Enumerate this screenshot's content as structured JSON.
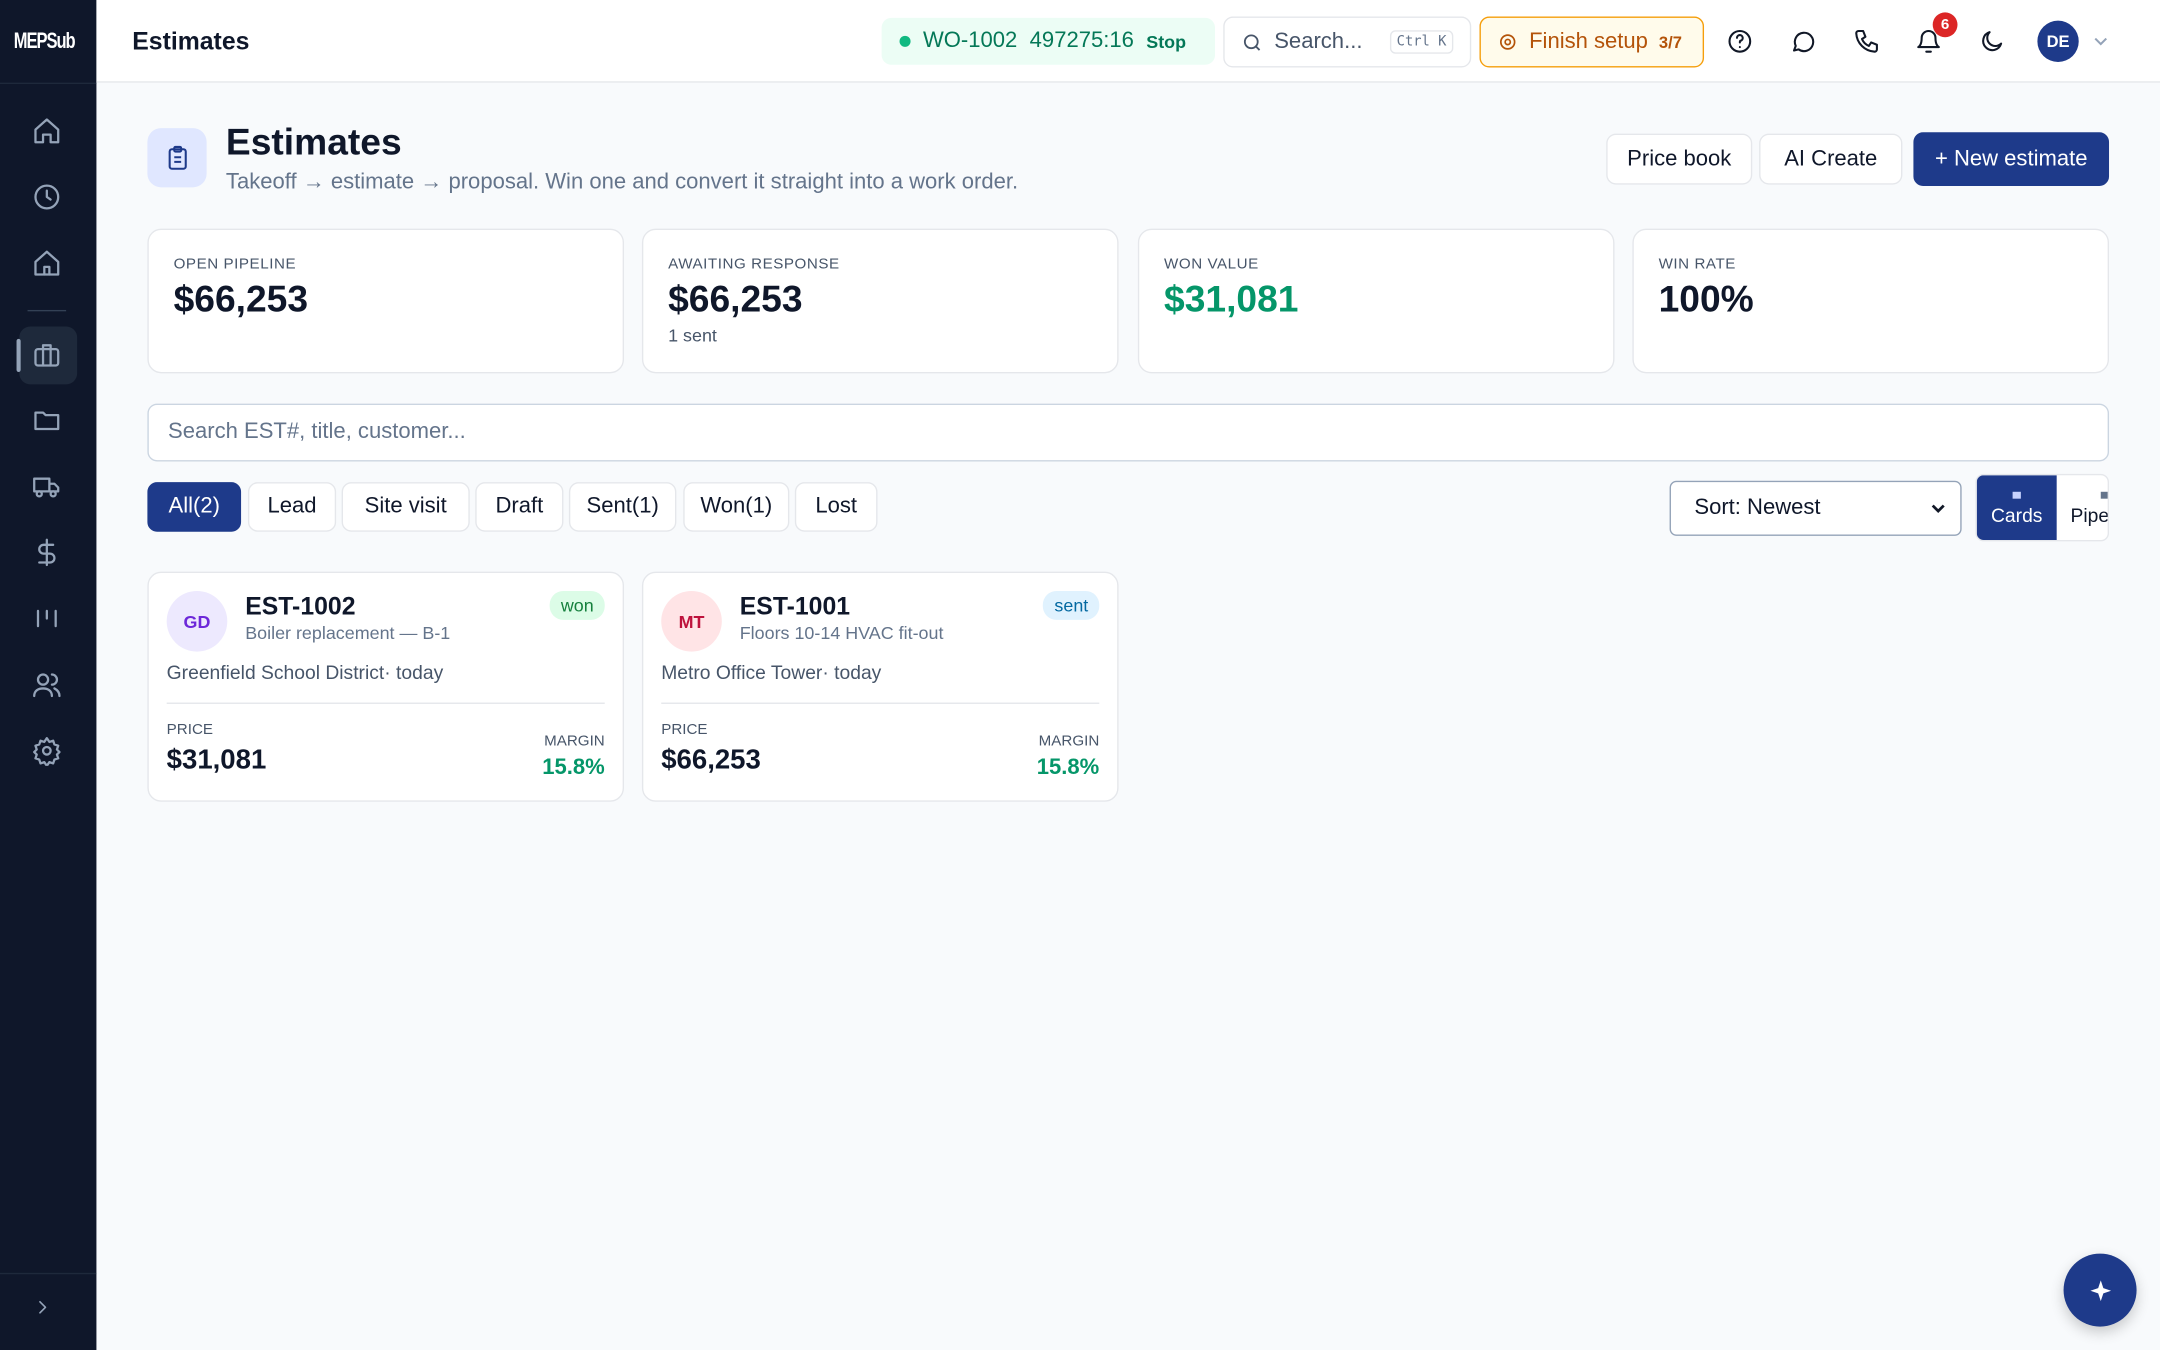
{
  "sidebar": {
    "logo": "MEPSub"
  },
  "topbar": {
    "page_title": "Estimates",
    "timer": {
      "work_order": "WO-1002",
      "elapsed": "497275:16",
      "action": "Stop"
    },
    "search": {
      "placeholder": "Search...",
      "shortcut": "Ctrl K"
    },
    "setup": {
      "label": "Finish setup",
      "progress": "3/7"
    },
    "notifications": {
      "count": "6"
    },
    "user": {
      "initials": "DE"
    }
  },
  "header": {
    "title": "Estimates",
    "subtitle": "Takeoff → estimate → proposal. Win one and convert it straight into a work order.",
    "actions": [
      "Price book",
      "AI Create",
      "+ New estimate"
    ]
  },
  "stats": [
    {
      "label": "OPEN PIPELINE",
      "value": "$66,253"
    },
    {
      "label": "AWAITING RESPONSE",
      "value": "$66,253",
      "note": "1 sent"
    },
    {
      "label": "WON VALUE",
      "value": "$31,081"
    },
    {
      "label": "WIN RATE",
      "value": "100%"
    }
  ],
  "search_placeholder": "Search EST#, title, customer...",
  "filters": [
    "All(2)",
    "Lead",
    "Site visit",
    "Draft",
    "Sent(1)",
    "Won(1)",
    "Lost"
  ],
  "sort": "Sort: Newest",
  "views": [
    "Cards",
    "Pipe"
  ],
  "estimates": [
    {
      "initials": "GD",
      "number": "EST-1002",
      "title": "Boiler replacement — B-1",
      "status": "won",
      "customer": "Greenfield School District· today",
      "price_label": "PRICE",
      "price": "$31,081",
      "margin_label": "MARGIN",
      "margin": "15.8%"
    },
    {
      "initials": "MT",
      "number": "EST-1001",
      "title": "Floors 10-14 HVAC fit-out",
      "status": "sent",
      "customer": "Metro Office Tower· today",
      "price_label": "PRICE",
      "price": "$66,253",
      "margin_label": "MARGIN",
      "margin": "15.8%"
    }
  ]
}
